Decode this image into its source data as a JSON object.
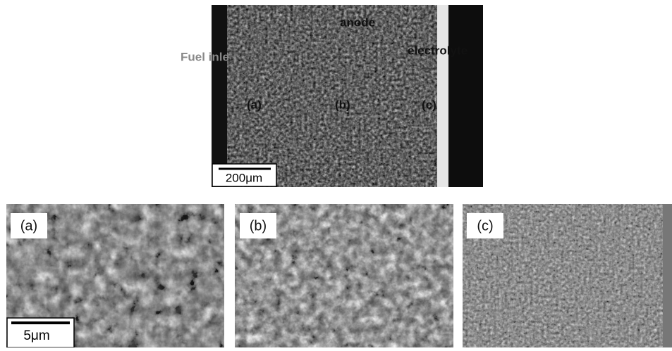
{
  "overview": {
    "labels": {
      "anode": "anode",
      "fuel_inlet": "Fuel inle",
      "electrolyte": "electrolyte",
      "a": "(a)",
      "b": "(b)",
      "c": "(c)"
    },
    "scale_bar": "200μm"
  },
  "panels": [
    {
      "label": "(a)",
      "scale_bar": "5μm"
    },
    {
      "label": "(b)"
    },
    {
      "label": "(c)"
    }
  ]
}
